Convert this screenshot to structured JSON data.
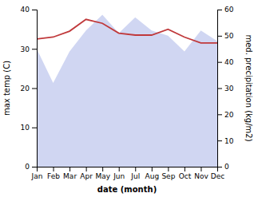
{
  "chart_data": {
    "type": "line",
    "xlabel": "date (month)",
    "ylabel": "max temp (C)",
    "y2label": "med. precipitation (kg/m2)",
    "categories": [
      "Jan",
      "Feb",
      "Mar",
      "Apr",
      "May",
      "Jun",
      "Jul",
      "Aug",
      "Sep",
      "Oct",
      "Nov",
      "Dec"
    ],
    "series": [
      {
        "type": "area",
        "axis": "y2",
        "color": "#aab4e8",
        "values": [
          45,
          32,
          44,
          52,
          58,
          51,
          57,
          52,
          50,
          44,
          52,
          48
        ]
      },
      {
        "type": "line",
        "color": "#c0393b",
        "values": [
          32.5,
          33.0,
          34.5,
          37.5,
          36.5,
          34.0,
          33.5,
          33.5,
          35.0,
          33.0,
          31.5,
          31.5
        ]
      }
    ],
    "ylim": [
      0,
      40
    ],
    "yticks": [
      0,
      10,
      20,
      30,
      40
    ],
    "y2lim": [
      0,
      60
    ],
    "y2ticks": [
      0,
      10,
      20,
      30,
      40,
      50,
      60
    ],
    "grid": false
  }
}
